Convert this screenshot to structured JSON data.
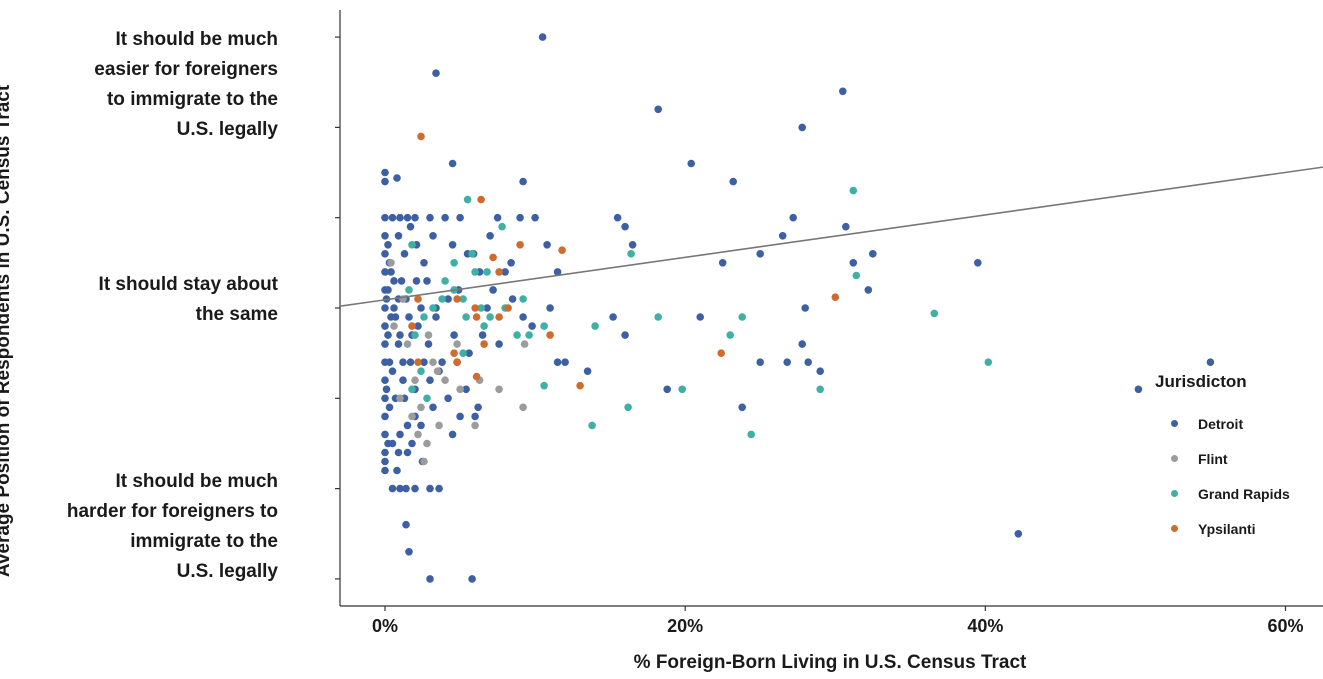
{
  "chart_data": {
    "type": "scatter",
    "xlabel": "% Foreign-Born Living in U.S. Census Tract",
    "ylabel": "Average Position of Respondents in U.S. Census Tract",
    "x_ticks": [
      "0%",
      "20%",
      "40%",
      "60%"
    ],
    "x_tick_values": [
      0,
      20,
      40,
      60
    ],
    "y_tick_values": [
      1,
      1.5,
      2,
      2.5,
      3,
      3.5,
      4
    ],
    "y_category_labels": [
      {
        "value": 4,
        "lines": [
          "It should be much",
          "easier for foreigners",
          "to immigrate to the",
          "U.S. legally"
        ]
      },
      {
        "value": 2.5,
        "lines": [
          "It should stay about",
          "the same"
        ]
      },
      {
        "value": 1,
        "lines": [
          "It should be much",
          "harder for foreigners to",
          "immigrate to the",
          "U.S. legally"
        ]
      }
    ],
    "xlim": [
      -3,
      62.5
    ],
    "ylim": [
      0.85,
      4.15
    ],
    "trend_line": {
      "x": [
        -3,
        62.5
      ],
      "y": [
        2.51,
        3.28
      ]
    },
    "legend": {
      "title": "Jurisdicton",
      "position": "right",
      "entries": [
        {
          "name": "Detroit",
          "color": "#3d5fa3"
        },
        {
          "name": "Flint",
          "color": "#9c9c9c"
        },
        {
          "name": "Grand Rapids",
          "color": "#3fb0a5"
        },
        {
          "name": "Ypsilanti",
          "color": "#cf6b2c"
        }
      ]
    },
    "series": [
      {
        "name": "Detroit",
        "color": "#3d5fa3",
        "points": [
          [
            10.5,
            4.0
          ],
          [
            3.4,
            3.8
          ],
          [
            30.5,
            3.7
          ],
          [
            18.2,
            3.6
          ],
          [
            27.8,
            3.5
          ],
          [
            4.5,
            3.3
          ],
          [
            20.4,
            3.3
          ],
          [
            23.2,
            3.2
          ],
          [
            0,
            3.25
          ],
          [
            0,
            3.2
          ],
          [
            0.8,
            3.22
          ],
          [
            0,
            3.0
          ],
          [
            0.5,
            3.0
          ],
          [
            1.0,
            3.0
          ],
          [
            1.5,
            3.0
          ],
          [
            2.0,
            3.0
          ],
          [
            3.0,
            3.0
          ],
          [
            4.0,
            3.0
          ],
          [
            5.0,
            3.0
          ],
          [
            7.5,
            3.0
          ],
          [
            9.0,
            3.0
          ],
          [
            10.0,
            3.0
          ],
          [
            9.2,
            3.2
          ],
          [
            27.2,
            3.0
          ],
          [
            15.5,
            3.0
          ],
          [
            16.0,
            2.95
          ],
          [
            26.5,
            2.9
          ],
          [
            30.7,
            2.95
          ],
          [
            16.5,
            2.85
          ],
          [
            10.8,
            2.85
          ],
          [
            11.5,
            2.7
          ],
          [
            25.0,
            2.8
          ],
          [
            22.5,
            2.75
          ],
          [
            32.5,
            2.8
          ],
          [
            31.2,
            2.75
          ],
          [
            39.5,
            2.75
          ],
          [
            32.2,
            2.6
          ],
          [
            28.0,
            2.5
          ],
          [
            15.2,
            2.45
          ],
          [
            16.0,
            2.35
          ],
          [
            21.0,
            2.45
          ],
          [
            27.8,
            2.3
          ],
          [
            28.2,
            2.2
          ],
          [
            25.0,
            2.2
          ],
          [
            26.8,
            2.2
          ],
          [
            29.0,
            2.15
          ],
          [
            12.0,
            2.2
          ],
          [
            11.5,
            2.2
          ],
          [
            13.5,
            2.15
          ],
          [
            18.8,
            2.05
          ],
          [
            23.8,
            1.95
          ],
          [
            50.2,
            2.05
          ],
          [
            55.0,
            2.2
          ],
          [
            11.0,
            2.5
          ],
          [
            9.8,
            2.4
          ],
          [
            9.2,
            2.45
          ],
          [
            8.5,
            2.55
          ],
          [
            8.0,
            2.7
          ],
          [
            7.2,
            2.6
          ],
          [
            6.3,
            2.7
          ],
          [
            5.5,
            2.8
          ],
          [
            4.5,
            2.85
          ],
          [
            3.2,
            2.9
          ],
          [
            2.6,
            2.75
          ],
          [
            2.1,
            2.85
          ],
          [
            1.7,
            2.95
          ],
          [
            1.3,
            2.8
          ],
          [
            0.9,
            2.9
          ],
          [
            0.4,
            2.7
          ],
          [
            0,
            2.9
          ],
          [
            0,
            2.8
          ],
          [
            0,
            2.7
          ],
          [
            0,
            2.6
          ],
          [
            0,
            2.5
          ],
          [
            0,
            2.4
          ],
          [
            0,
            2.3
          ],
          [
            0,
            2.2
          ],
          [
            0,
            2.1
          ],
          [
            0,
            2.0
          ],
          [
            0,
            1.9
          ],
          [
            0,
            1.8
          ],
          [
            0,
            1.7
          ],
          [
            0.5,
            1.75
          ],
          [
            1.0,
            1.8
          ],
          [
            1.5,
            1.85
          ],
          [
            2.0,
            1.9
          ],
          [
            0.7,
            2.0
          ],
          [
            1.2,
            2.1
          ],
          [
            0.3,
            2.2
          ],
          [
            0.9,
            2.3
          ],
          [
            1.8,
            2.35
          ],
          [
            2.4,
            2.5
          ],
          [
            0.6,
            2.5
          ],
          [
            1.4,
            2.55
          ],
          [
            2.8,
            2.65
          ],
          [
            0.2,
            2.6
          ],
          [
            1.1,
            2.65
          ],
          [
            2.2,
            2.4
          ],
          [
            3.4,
            2.45
          ],
          [
            4.2,
            2.55
          ],
          [
            4.6,
            2.35
          ],
          [
            3.8,
            2.2
          ],
          [
            4.8,
            2.2
          ],
          [
            5.6,
            2.25
          ],
          [
            6.5,
            2.35
          ],
          [
            3.0,
            2.1
          ],
          [
            4.2,
            2.0
          ],
          [
            5.0,
            1.9
          ],
          [
            6.0,
            1.9
          ],
          [
            4.5,
            1.8
          ],
          [
            3.2,
            1.95
          ],
          [
            2.0,
            2.05
          ],
          [
            1.5,
            1.7
          ],
          [
            2.5,
            1.65
          ],
          [
            0.8,
            1.6
          ],
          [
            1.4,
            1.5
          ],
          [
            0.5,
            1.5
          ],
          [
            2.0,
            1.5
          ],
          [
            3.0,
            1.5
          ],
          [
            3.6,
            1.5
          ],
          [
            1.0,
            1.5
          ],
          [
            1.6,
            1.15
          ],
          [
            1.4,
            1.3
          ],
          [
            3.0,
            1.0
          ],
          [
            5.8,
            1.0
          ],
          [
            42.2,
            1.25
          ],
          [
            0,
            1.65
          ],
          [
            0,
            1.6
          ],
          [
            0.2,
            1.75
          ],
          [
            0.3,
            1.95
          ],
          [
            0.1,
            2.05
          ],
          [
            0.5,
            2.15
          ],
          [
            0.2,
            2.35
          ],
          [
            0.4,
            2.45
          ],
          [
            0.1,
            2.55
          ],
          [
            0.3,
            2.75
          ],
          [
            0.2,
            2.85
          ],
          [
            0.6,
            2.65
          ],
          [
            0.7,
            2.45
          ],
          [
            1.0,
            2.35
          ],
          [
            1.2,
            2.2
          ],
          [
            1.3,
            2.0
          ],
          [
            2.6,
            2.2
          ],
          [
            2.9,
            2.3
          ],
          [
            3.6,
            2.15
          ],
          [
            2.4,
            1.85
          ],
          [
            1.8,
            1.75
          ],
          [
            0.9,
            1.7
          ],
          [
            5.4,
            2.05
          ],
          [
            6.2,
            1.95
          ],
          [
            3.4,
            2.5
          ],
          [
            4.9,
            2.6
          ],
          [
            5.9,
            2.8
          ],
          [
            7.0,
            2.9
          ],
          [
            8.4,
            2.75
          ],
          [
            6.8,
            2.5
          ],
          [
            7.6,
            2.3
          ],
          [
            2.1,
            2.65
          ],
          [
            1.6,
            2.45
          ],
          [
            0.9,
            2.55
          ],
          [
            1.7,
            2.2
          ]
        ]
      },
      {
        "name": "Flint",
        "color": "#9c9c9c",
        "points": [
          [
            1.2,
            2.55
          ],
          [
            0.6,
            2.4
          ],
          [
            1.5,
            2.3
          ],
          [
            2.0,
            2.1
          ],
          [
            2.4,
            1.95
          ],
          [
            3.2,
            2.2
          ],
          [
            4.0,
            2.1
          ],
          [
            5.0,
            2.05
          ],
          [
            6.3,
            2.1
          ],
          [
            7.6,
            2.05
          ],
          [
            9.2,
            1.95
          ],
          [
            3.5,
            2.15
          ],
          [
            2.2,
            1.8
          ],
          [
            1.8,
            1.9
          ],
          [
            1.0,
            2.0
          ],
          [
            2.8,
            1.75
          ],
          [
            2.6,
            1.65
          ],
          [
            0.4,
            2.75
          ],
          [
            9.3,
            2.3
          ],
          [
            4.8,
            2.3
          ],
          [
            3.6,
            1.85
          ],
          [
            6.0,
            1.85
          ],
          [
            2.9,
            2.35
          ]
        ]
      },
      {
        "name": "Grand Rapids",
        "color": "#3fb0a5",
        "points": [
          [
            5.5,
            3.1
          ],
          [
            7.8,
            2.95
          ],
          [
            1.8,
            2.85
          ],
          [
            4.6,
            2.75
          ],
          [
            5.8,
            2.8
          ],
          [
            6.0,
            2.7
          ],
          [
            6.8,
            2.7
          ],
          [
            4.0,
            2.65
          ],
          [
            3.8,
            2.55
          ],
          [
            4.6,
            2.6
          ],
          [
            5.2,
            2.55
          ],
          [
            6.4,
            2.5
          ],
          [
            7.0,
            2.45
          ],
          [
            8.0,
            2.5
          ],
          [
            9.2,
            2.55
          ],
          [
            10.6,
            2.4
          ],
          [
            9.6,
            2.35
          ],
          [
            8.8,
            2.35
          ],
          [
            6.6,
            2.4
          ],
          [
            5.4,
            2.45
          ],
          [
            3.2,
            2.5
          ],
          [
            2.6,
            2.45
          ],
          [
            1.6,
            2.6
          ],
          [
            2.0,
            2.35
          ],
          [
            2.4,
            2.15
          ],
          [
            1.8,
            2.05
          ],
          [
            2.8,
            2.0
          ],
          [
            5.2,
            2.25
          ],
          [
            14.0,
            2.4
          ],
          [
            16.4,
            2.8
          ],
          [
            18.2,
            2.45
          ],
          [
            23.0,
            2.35
          ],
          [
            23.8,
            2.45
          ],
          [
            31.2,
            3.15
          ],
          [
            31.4,
            2.68
          ],
          [
            36.6,
            2.47
          ],
          [
            40.2,
            2.2
          ],
          [
            29.0,
            2.05
          ],
          [
            19.8,
            2.05
          ],
          [
            16.2,
            1.95
          ],
          [
            13.8,
            1.85
          ],
          [
            24.4,
            1.8
          ],
          [
            10.6,
            2.07
          ]
        ]
      },
      {
        "name": "Ypsilanti",
        "color": "#cf6b2c",
        "points": [
          [
            2.4,
            3.45
          ],
          [
            6.4,
            3.1
          ],
          [
            9.0,
            2.85
          ],
          [
            11.8,
            2.82
          ],
          [
            7.2,
            2.78
          ],
          [
            7.6,
            2.7
          ],
          [
            4.8,
            2.55
          ],
          [
            6.0,
            2.5
          ],
          [
            7.6,
            2.45
          ],
          [
            8.2,
            2.5
          ],
          [
            11.0,
            2.35
          ],
          [
            6.6,
            2.3
          ],
          [
            4.8,
            2.2
          ],
          [
            6.1,
            2.12
          ],
          [
            13.0,
            2.07
          ],
          [
            30.0,
            2.56
          ],
          [
            22.4,
            2.25
          ],
          [
            4.6,
            2.25
          ],
          [
            1.8,
            2.4
          ],
          [
            2.2,
            2.55
          ],
          [
            2.2,
            2.2
          ],
          [
            6.1,
            2.45
          ]
        ]
      }
    ]
  }
}
